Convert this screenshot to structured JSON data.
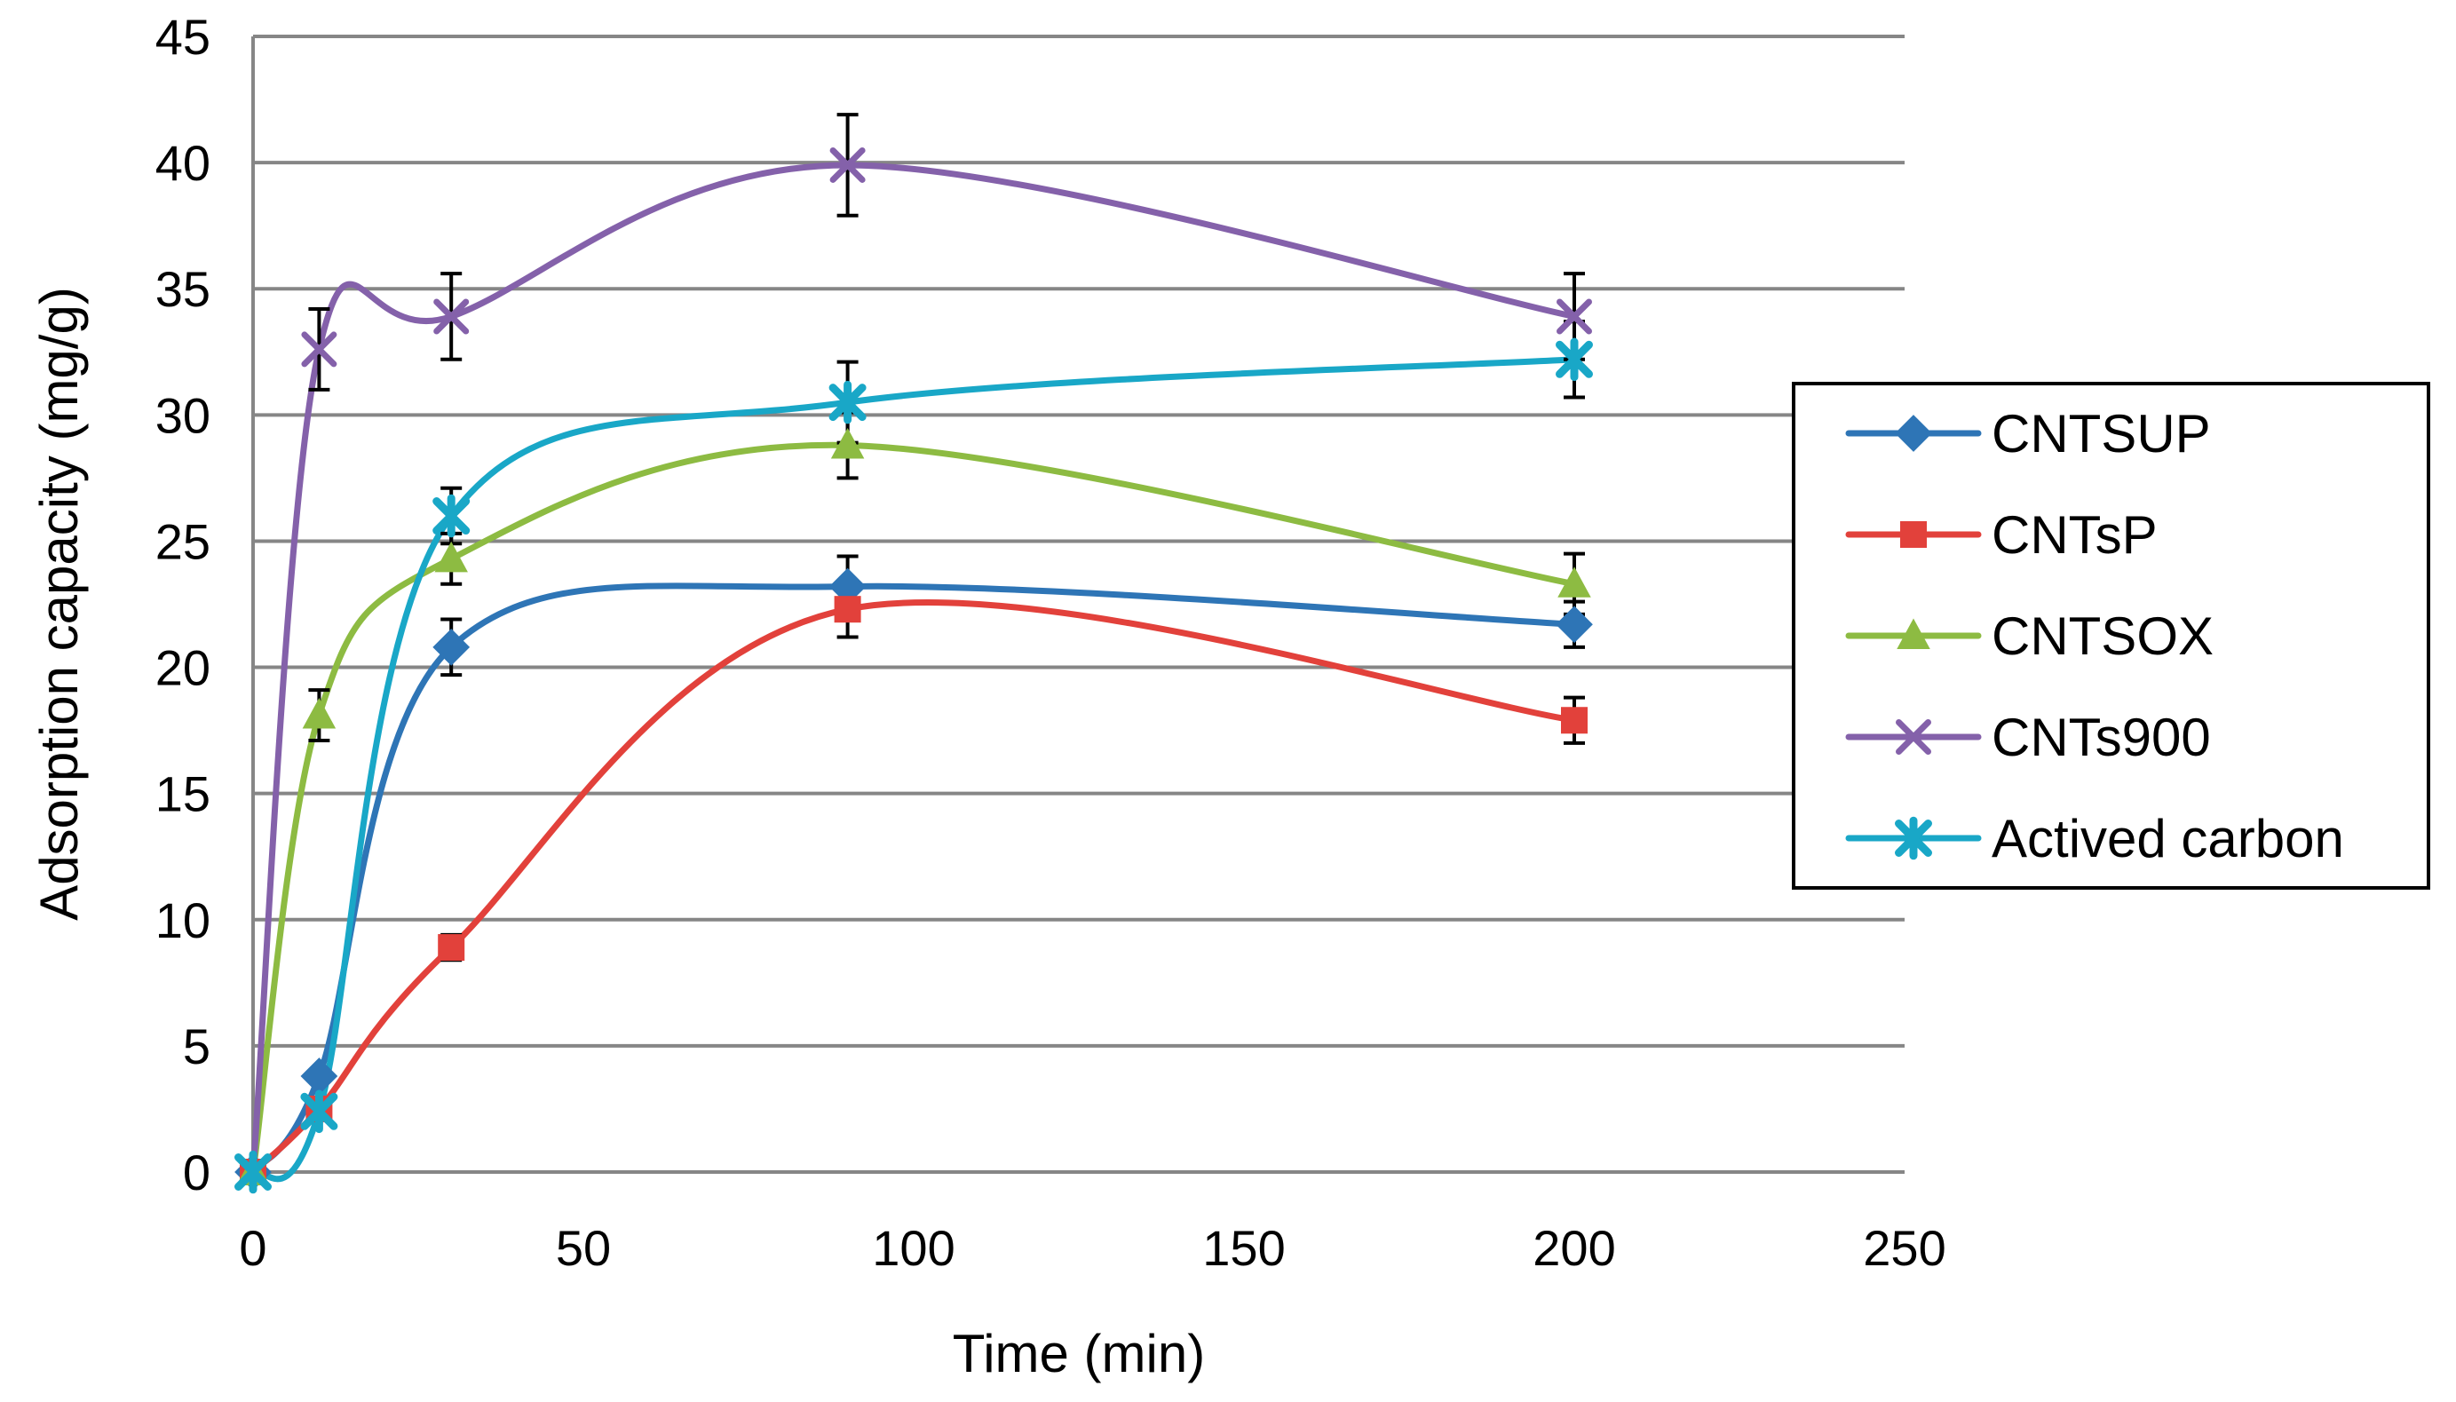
{
  "chart_data": {
    "type": "line",
    "title": "",
    "xlabel": "Time (min)",
    "ylabel": "Adsorption capacity (mg/g)",
    "xlim": [
      0,
      250
    ],
    "ylim": [
      0,
      45
    ],
    "x_ticks": [
      0,
      50,
      100,
      150,
      200,
      250
    ],
    "y_ticks": [
      0,
      5,
      10,
      15,
      20,
      25,
      30,
      35,
      40,
      45
    ],
    "grid": "horizontal",
    "smooth_lines": true,
    "legend_position": "right",
    "x": [
      0,
      10,
      30,
      90,
      200
    ],
    "series": [
      {
        "name": "CNTSUP",
        "color": "#2E75B6",
        "marker": "diamond",
        "values": [
          0,
          3.8,
          20.8,
          23.2,
          21.7
        ],
        "errors": [
          0,
          0,
          1.1,
          1.2,
          0.9
        ]
      },
      {
        "name": "CNTsP",
        "color": "#E2413B",
        "marker": "square",
        "values": [
          0,
          2.5,
          8.9,
          22.3,
          17.9
        ],
        "errors": [
          0,
          0,
          0.5,
          1.1,
          0.9
        ]
      },
      {
        "name": "CNTSOX",
        "color": "#8DBB42",
        "marker": "triangle",
        "values": [
          0,
          18.1,
          24.3,
          28.8,
          23.3
        ],
        "errors": [
          0,
          1.0,
          1.0,
          1.3,
          1.2
        ]
      },
      {
        "name": "CNTs900",
        "color": "#8461AA",
        "marker": "x",
        "values": [
          0,
          32.6,
          33.9,
          39.9,
          33.9
        ],
        "errors": [
          0,
          1.6,
          1.7,
          2.0,
          1.7
        ]
      },
      {
        "name": "Actived carbon",
        "color": "#19A7C7",
        "marker": "star",
        "values": [
          0,
          2.4,
          26.0,
          30.5,
          32.2
        ],
        "errors": [
          0,
          0,
          1.1,
          1.6,
          1.5
        ]
      }
    ]
  }
}
